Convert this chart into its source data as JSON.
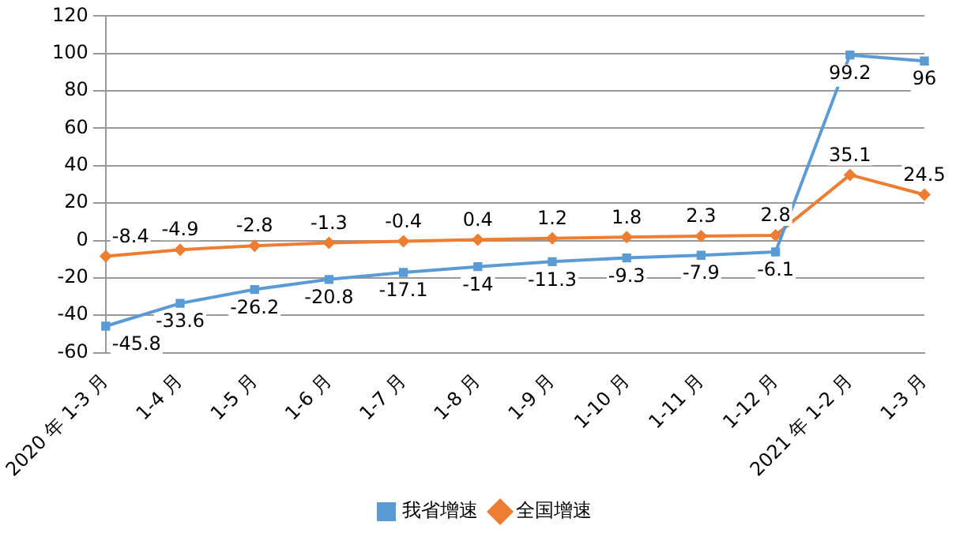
{
  "chart_data": {
    "type": "line",
    "categories": [
      "2020 年 1-3 月",
      "1-4 月",
      "1-5 月",
      "1-6 月",
      "1-7 月",
      "1-8 月",
      "1-9 月",
      "1-10 月",
      "1-11 月",
      "1-12 月",
      "2021 年 1-2 月",
      "1-3 月"
    ],
    "series": [
      {
        "name": "我省增速",
        "color": "#5b9bd5",
        "marker": "square",
        "values": [
          -45.8,
          -33.6,
          -26.2,
          -20.8,
          -17.1,
          -14,
          -11.3,
          -9.3,
          -7.9,
          -6.1,
          99.2,
          96
        ]
      },
      {
        "name": "全国增速",
        "color": "#ed7d31",
        "marker": "diamond",
        "values": [
          -8.4,
          -4.9,
          -2.8,
          -1.3,
          -0.4,
          0.4,
          1.2,
          1.8,
          2.3,
          2.8,
          35.1,
          24.5
        ]
      }
    ],
    "ylim": [
      -60,
      120
    ],
    "yticks": [
      -60,
      -40,
      -20,
      0,
      20,
      40,
      60,
      80,
      100,
      120
    ],
    "grid": "y",
    "legend": "bottom",
    "data_labels": true
  }
}
